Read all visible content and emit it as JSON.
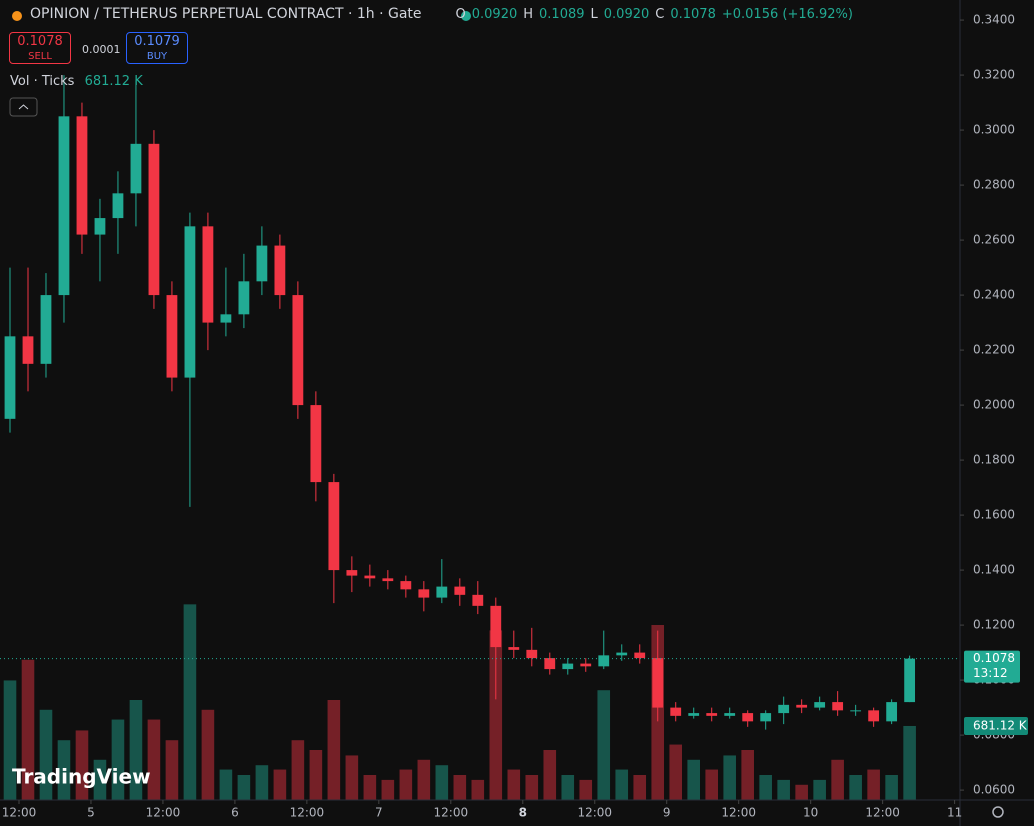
{
  "header": {
    "title": "OPINION / TETHERUS PERPETUAL CONTRACT · 1h · Gate",
    "ohlc": [
      {
        "key": "O",
        "value": "0.0920"
      },
      {
        "key": "H",
        "value": "0.1089"
      },
      {
        "key": "L",
        "value": "0.0920"
      },
      {
        "key": "C",
        "value": "0.1078"
      }
    ],
    "change": "+0.0156 (+16.92%)"
  },
  "trade_panel": {
    "sell_price": "0.1078",
    "sell": "SELL",
    "spread": "0.0001",
    "buy_price": "0.1079",
    "buy": "BUY"
  },
  "volume_legend": {
    "label": "Vol · Ticks",
    "value": "681.12 K"
  },
  "branding": "TradingView",
  "chart_data": {
    "type": "candlestick",
    "x": [
      0,
      1,
      2,
      3,
      4,
      5,
      6,
      7,
      8,
      9,
      10,
      11,
      12,
      13,
      14,
      15,
      16,
      17,
      18,
      19,
      20,
      21,
      22,
      23,
      24,
      25,
      26,
      27,
      28,
      29,
      30,
      31,
      32,
      33,
      34,
      35,
      36,
      37,
      38,
      39,
      40,
      41,
      42,
      43,
      44,
      45,
      46,
      47,
      48,
      49,
      50
    ],
    "open": [
      0.195,
      0.225,
      0.215,
      0.24,
      0.305,
      0.262,
      0.268,
      0.277,
      0.295,
      0.24,
      0.21,
      0.265,
      0.23,
      0.233,
      0.245,
      0.258,
      0.24,
      0.2,
      0.172,
      0.14,
      0.138,
      0.137,
      0.136,
      0.133,
      0.13,
      0.134,
      0.131,
      0.127,
      0.112,
      0.111,
      0.108,
      0.104,
      0.106,
      0.105,
      0.109,
      0.11,
      0.108,
      0.09,
      0.087,
      0.088,
      0.087,
      0.088,
      0.085,
      0.088,
      0.091,
      0.09,
      0.092,
      0.089,
      0.089,
      0.085,
      0.092
    ],
    "high": [
      0.25,
      0.25,
      0.248,
      0.32,
      0.31,
      0.275,
      0.285,
      0.318,
      0.3,
      0.245,
      0.27,
      0.27,
      0.25,
      0.255,
      0.265,
      0.262,
      0.245,
      0.205,
      0.175,
      0.145,
      0.142,
      0.14,
      0.138,
      0.136,
      0.144,
      0.137,
      0.136,
      0.13,
      0.118,
      0.119,
      0.11,
      0.108,
      0.108,
      0.118,
      0.113,
      0.113,
      0.118,
      0.092,
      0.09,
      0.09,
      0.09,
      0.089,
      0.089,
      0.094,
      0.093,
      0.094,
      0.096,
      0.091,
      0.09,
      0.093,
      0.1089
    ],
    "low": [
      0.19,
      0.205,
      0.21,
      0.23,
      0.255,
      0.245,
      0.255,
      0.265,
      0.235,
      0.205,
      0.163,
      0.22,
      0.225,
      0.228,
      0.24,
      0.235,
      0.195,
      0.165,
      0.128,
      0.132,
      0.134,
      0.133,
      0.13,
      0.125,
      0.128,
      0.127,
      0.124,
      0.093,
      0.108,
      0.105,
      0.102,
      0.102,
      0.103,
      0.104,
      0.107,
      0.106,
      0.085,
      0.085,
      0.086,
      0.085,
      0.086,
      0.083,
      0.082,
      0.084,
      0.088,
      0.089,
      0.087,
      0.087,
      0.083,
      0.084,
      0.092
    ],
    "close": [
      0.225,
      0.215,
      0.24,
      0.305,
      0.262,
      0.268,
      0.277,
      0.295,
      0.24,
      0.21,
      0.265,
      0.23,
      0.233,
      0.245,
      0.258,
      0.24,
      0.2,
      0.172,
      0.14,
      0.138,
      0.137,
      0.136,
      0.133,
      0.13,
      0.134,
      0.131,
      0.127,
      0.112,
      0.111,
      0.108,
      0.104,
      0.106,
      0.105,
      0.109,
      0.11,
      0.108,
      0.09,
      0.087,
      0.088,
      0.087,
      0.088,
      0.085,
      0.088,
      0.091,
      0.09,
      0.092,
      0.089,
      0.089,
      0.085,
      0.092,
      0.1078
    ],
    "volume": [
      1100,
      1290,
      830,
      550,
      640,
      370,
      740,
      920,
      740,
      550,
      1800,
      830,
      280,
      230,
      320,
      280,
      550,
      460,
      920,
      410,
      230,
      185,
      280,
      370,
      320,
      230,
      185,
      1560,
      280,
      230,
      460,
      230,
      185,
      1010,
      280,
      230,
      1610,
      510,
      370,
      280,
      410,
      460,
      230,
      185,
      140,
      185,
      370,
      230,
      280,
      230,
      681.12
    ],
    "volume_label": "681.12 K",
    "last_price": {
      "value": 0.1078,
      "label": "0.1078",
      "countdown": "13:12"
    },
    "xlim": [
      -0.5,
      52.8
    ],
    "xticks": [
      {
        "value": 0.5,
        "label": "12:00"
      },
      {
        "value": 4.5,
        "label": "5"
      },
      {
        "value": 8.5,
        "label": "12:00"
      },
      {
        "value": 12.5,
        "label": "6"
      },
      {
        "value": 16.5,
        "label": "12:00"
      },
      {
        "value": 20.5,
        "label": "7"
      },
      {
        "value": 24.5,
        "label": "12:00"
      },
      {
        "value": 28.5,
        "label": "8"
      },
      {
        "value": 32.5,
        "label": "12:00"
      },
      {
        "value": 36.5,
        "label": "9"
      },
      {
        "value": 40.5,
        "label": "12:00"
      },
      {
        "value": 44.5,
        "label": "10"
      },
      {
        "value": 48.5,
        "label": "12:00"
      },
      {
        "value": 52.5,
        "label": "11"
      }
    ],
    "ylim": [
      0.0564,
      0.3473
    ],
    "yticks": [
      {
        "value": 0.06,
        "label": "0.0600"
      },
      {
        "value": 0.08,
        "label": "0.0800"
      },
      {
        "value": 0.1,
        "label": "0.1000"
      },
      {
        "value": 0.12,
        "label": "0.1200"
      },
      {
        "value": 0.14,
        "label": "0.1400"
      },
      {
        "value": 0.16,
        "label": "0.1600"
      },
      {
        "value": 0.18,
        "label": "0.1800"
      },
      {
        "value": 0.2,
        "label": "0.2000"
      },
      {
        "value": 0.22,
        "label": "0.2200"
      },
      {
        "value": 0.24,
        "label": "0.2400"
      },
      {
        "value": 0.26,
        "label": "0.2600"
      },
      {
        "value": 0.28,
        "label": "0.2800"
      },
      {
        "value": 0.3,
        "label": "0.3000"
      },
      {
        "value": 0.32,
        "label": "0.3200"
      },
      {
        "value": 0.34,
        "label": "0.3400"
      }
    ],
    "volume_lim": [
      0,
      1840
    ],
    "up_color": "#22ab94",
    "down_color": "#f23645"
  }
}
